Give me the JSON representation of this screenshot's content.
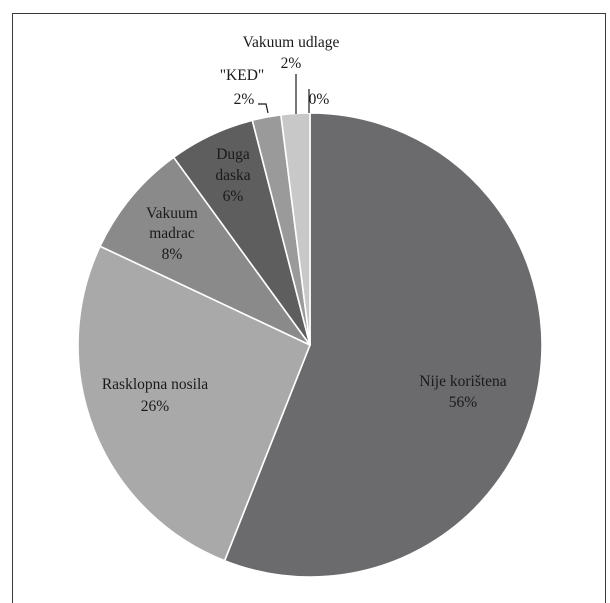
{
  "chart_data": {
    "type": "pie",
    "title": "",
    "slices": [
      {
        "label": "Nije korištena",
        "value": 56,
        "value_label": "56%",
        "color": "#6b6b6e"
      },
      {
        "label": "Rasklopna nosila",
        "value": 26,
        "value_label": "26%",
        "color": "#a9a9a9"
      },
      {
        "label": "Vakuum madrac",
        "label_lines": [
          "Vakuum",
          "madrac"
        ],
        "value": 8,
        "value_label": "8%",
        "color": "#8a8a8a"
      },
      {
        "label": "Duga daska",
        "label_lines": [
          "Duga",
          "daska"
        ],
        "value": 6,
        "value_label": "6%",
        "color": "#5e5e5e"
      },
      {
        "label": "\"KED\"",
        "value": 2,
        "value_label": "2%",
        "color": "#9a9a9a"
      },
      {
        "label": "Vakuum udlage",
        "value": 2,
        "value_label": "2%",
        "color": "#c8c8c8"
      },
      {
        "label": "",
        "value": 0,
        "value_label": "0%",
        "color": "#dddddd"
      }
    ],
    "start_angle": "12 o'clock",
    "direction": "clockwise",
    "legend": "none",
    "border_color": "#ffffff"
  }
}
